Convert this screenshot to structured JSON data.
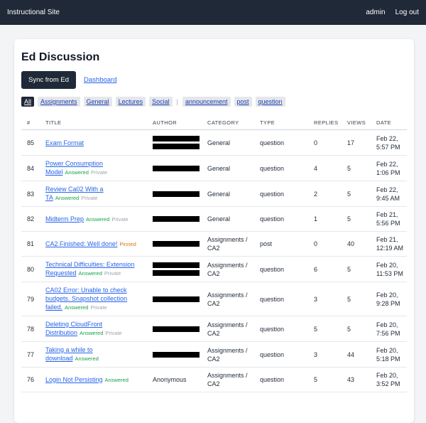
{
  "nav": {
    "brand": "Instructional Site",
    "user": "admin",
    "logout": "Log out"
  },
  "header": {
    "title": "Ed Discussion",
    "sync_button": "Sync from Ed",
    "dashboard_link": "Dashboard"
  },
  "filters": {
    "categories": [
      "All",
      "Assignments",
      "General",
      "Lectures",
      "Social"
    ],
    "separator": "|",
    "types": [
      "announcement",
      "post",
      "question"
    ]
  },
  "table": {
    "columns": [
      "#",
      "TITLE",
      "AUTHOR",
      "CATEGORY",
      "TYPE",
      "REPLIES",
      "VIEWS",
      "DATE"
    ],
    "rows": [
      {
        "id": 85,
        "title": "Exam Format",
        "tags": [],
        "category": "General",
        "type": "question",
        "replies": 0,
        "views": 17,
        "date": "Feb 22, 5:57 PM"
      },
      {
        "id": 84,
        "title": "Power Consumption Model",
        "tags": [
          "Answered",
          "Private"
        ],
        "category": "General",
        "type": "question",
        "replies": 4,
        "views": 5,
        "date": "Feb 22, 1:06 PM"
      },
      {
        "id": 83,
        "title": "Review Ca02 With a TA",
        "tags": [
          "Answered",
          "Private"
        ],
        "category": "General",
        "type": "question",
        "replies": 2,
        "views": 5,
        "date": "Feb 22, 9:45 AM"
      },
      {
        "id": 82,
        "title": "Midterm Prep",
        "tags": [
          "Answered",
          "Private"
        ],
        "category": "General",
        "type": "question",
        "replies": 1,
        "views": 5,
        "date": "Feb 21, 5:56 PM"
      },
      {
        "id": 81,
        "title": "CA2 Finished: Well done!",
        "tags": [
          "Pinned"
        ],
        "category": "Assignments / CA2",
        "type": "post",
        "replies": 0,
        "views": 40,
        "date": "Feb 21, 12:19 AM"
      },
      {
        "id": 80,
        "title": "Technical Difficulties: Extension Requested",
        "tags": [
          "Answered",
          "Private"
        ],
        "category": "Assignments / CA2",
        "type": "question",
        "replies": 6,
        "views": 5,
        "date": "Feb 20, 11:53 PM"
      },
      {
        "id": 79,
        "title": "CA02 Error: Unable to check budgets. Snapshot collection failed.",
        "tags": [
          "Answered",
          "Private"
        ],
        "category": "Assignments / CA2",
        "type": "question",
        "replies": 3,
        "views": 5,
        "date": "Feb 20, 9:28 PM"
      },
      {
        "id": 78,
        "title": "Deleting CloudFront Distribution",
        "tags": [
          "Answered",
          "Private"
        ],
        "category": "Assignments / CA2",
        "type": "question",
        "replies": 5,
        "views": 5,
        "date": "Feb 20, 7:56 PM"
      },
      {
        "id": 77,
        "title": "Taking a while to download",
        "tags": [
          "Answered"
        ],
        "category": "Assignments / CA2",
        "type": "question",
        "replies": 3,
        "views": 44,
        "date": "Feb 20, 5:18 PM"
      },
      {
        "id": 76,
        "title": "Login Not Persisting",
        "tags": [
          "Answered"
        ],
        "author": "Anonymous",
        "category": "Assignments / CA2",
        "type": "question",
        "replies": 5,
        "views": 43,
        "date": "Feb 20, 3:52 PM"
      }
    ]
  }
}
